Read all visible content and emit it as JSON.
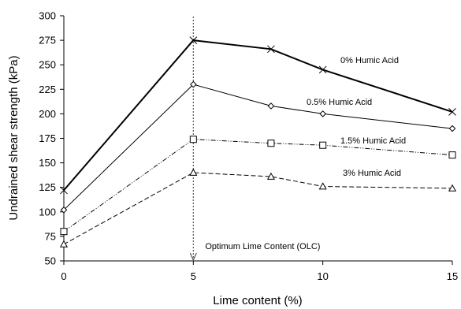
{
  "chart_data": {
    "type": "line",
    "xlabel": "Lime content (%)",
    "ylabel": "Undrained shear strength (kPa)",
    "xlim": [
      0,
      15
    ],
    "ylim": [
      50,
      300
    ],
    "xticks": [
      "0",
      "5",
      "10",
      "15"
    ],
    "yticks": [
      "50",
      "75",
      "100",
      "125",
      "150",
      "175",
      "200",
      "225",
      "250",
      "275",
      "300"
    ],
    "x": [
      0,
      5,
      8,
      10,
      15
    ],
    "grid": false,
    "series": [
      {
        "name": "0% Humic Acid",
        "marker": "x",
        "line": "solid-thick",
        "values": [
          122,
          275,
          266,
          245,
          202
        ]
      },
      {
        "name": "0.5% Humic Acid",
        "marker": "diamond",
        "line": "solid",
        "values": [
          102,
          230,
          208,
          200,
          185
        ]
      },
      {
        "name": "1.5% Humic Acid",
        "marker": "square",
        "line": "dash-dot",
        "values": [
          80,
          174,
          170,
          168,
          158
        ]
      },
      {
        "name": "3% Humic Acid",
        "marker": "triangle",
        "line": "dashed",
        "values": [
          67,
          140,
          136,
          126,
          124
        ]
      }
    ],
    "annotations": [
      {
        "text": "Optimum Lime Content (OLC)",
        "x": 5
      }
    ]
  }
}
